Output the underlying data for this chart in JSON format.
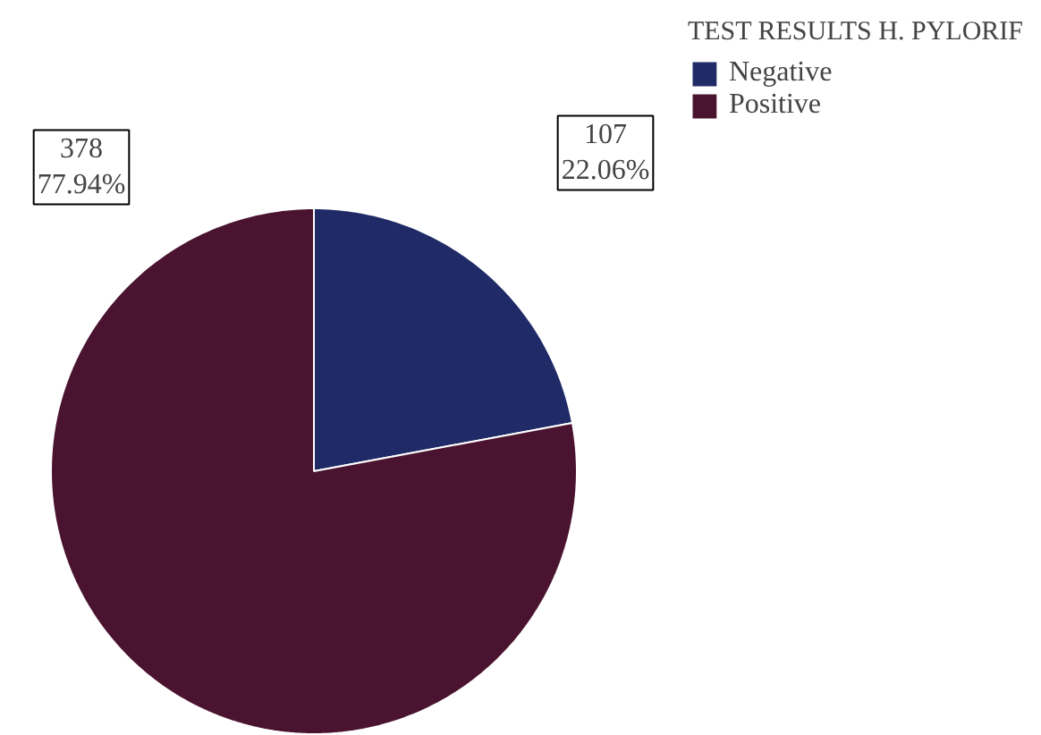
{
  "chart_data": {
    "type": "pie",
    "legend_title": "TEST RESULTS H. PYLORIF",
    "categories": [
      "Negative",
      "Positive"
    ],
    "values": [
      107,
      378
    ],
    "colors": [
      "#1f2a66",
      "#4a1430"
    ],
    "value_labels": [
      "107\n22.06%",
      "378\n77.94%"
    ],
    "legend": "top right"
  }
}
